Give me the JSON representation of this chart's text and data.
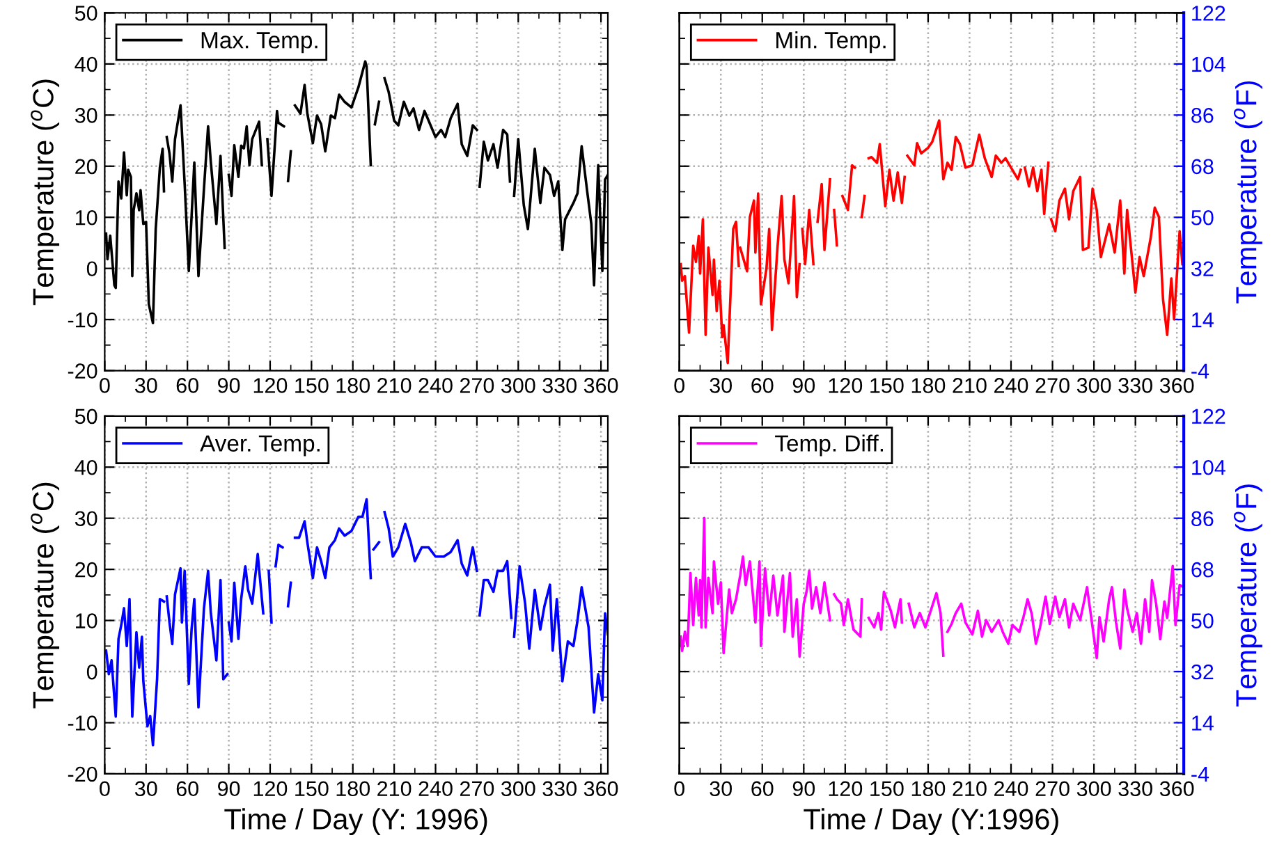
{
  "chart_data": [
    {
      "type": "line",
      "ylabel": "Temperature ($^{o}$C)",
      "grid": true,
      "legend": "top left",
      "xlim": [
        0,
        365
      ],
      "xticks": [
        0,
        30,
        60,
        90,
        120,
        150,
        180,
        210,
        240,
        270,
        300,
        330,
        360
      ],
      "ylim": [
        -20,
        50
      ],
      "yticks": [
        -20,
        -10,
        0,
        10,
        20,
        30,
        40,
        50
      ],
      "x": [
        1,
        2,
        4,
        7,
        8,
        10,
        12,
        14,
        16,
        17,
        19,
        20,
        21,
        23,
        25,
        26,
        28,
        30,
        32,
        35,
        37,
        40,
        42,
        43,
        44,
        45,
        47,
        49,
        51,
        55,
        58,
        61,
        65,
        68,
        72,
        75,
        77,
        81,
        84,
        87,
        88,
        90,
        92,
        94,
        97,
        99,
        101,
        103,
        105,
        107,
        112,
        114,
        116,
        118,
        121,
        125,
        126,
        130,
        131,
        133,
        135,
        136,
        138,
        142,
        145,
        147,
        151,
        154,
        157,
        160,
        164,
        167,
        170,
        174,
        179,
        184,
        189,
        190,
        193,
        194,
        196,
        199,
        201,
        203,
        206,
        210,
        213,
        217,
        221,
        224,
        228,
        232,
        235,
        240,
        244,
        247,
        251,
        256,
        259,
        263,
        267,
        270,
        271,
        272,
        275,
        278,
        282,
        285,
        289,
        292,
        294,
        296,
        297,
        300,
        304,
        307,
        312,
        316,
        319,
        323,
        326,
        329,
        332,
        334,
        340,
        343,
        346,
        350,
        353,
        355,
        358,
        361,
        362,
        363,
        365
      ],
      "series": [
        {
          "name": "Max. Temp.",
          "color": "#000000",
          "values": [
            6.8,
            1.8,
            6.4,
            -3.3,
            -3.8,
            17,
            13.7,
            22.7,
            14.3,
            19.3,
            17.9,
            -1.5,
            11.4,
            14.7,
            11.4,
            15.3,
            8.7,
            9.1,
            -7,
            -10.7,
            7.7,
            19.7,
            23.4,
            15.1,
            null,
            25.7,
            22.5,
            17,
            25.3,
            31.9,
            16.5,
            -0.5,
            20.7,
            -1.5,
            15.6,
            27.8,
            20.7,
            8.7,
            22,
            4,
            null,
            18.3,
            14.2,
            24.1,
            17.9,
            24,
            23.5,
            27.8,
            20.2,
            25.3,
            28.7,
            20.2,
            null,
            25.3,
            14.2,
            30.8,
            28.5,
            27.8,
            null,
            17.1,
            22.9,
            null,
            31.9,
            30.3,
            35.9,
            30.3,
            24.5,
            29.9,
            28.2,
            22.9,
            29.9,
            29.4,
            34,
            32.6,
            31.5,
            35.4,
            40.5,
            39.5,
            20.2,
            null,
            28.2,
            32.6,
            null,
            37.2,
            34.5,
            28.9,
            28,
            32.6,
            29.9,
            31.3,
            27.1,
            30.8,
            28.9,
            25.7,
            27.1,
            25.7,
            29.4,
            32.2,
            24.3,
            22,
            28,
            27.1,
            null,
            16,
            24.8,
            21.1,
            24.3,
            19.7,
            27.1,
            26.2,
            17,
            null,
            14.2,
            25.3,
            12.4,
            7.7,
            23.4,
            12.8,
            19.7,
            18.3,
            14.2,
            17,
            3.6,
            9.6,
            12.8,
            14.7,
            23.9,
            15.1,
            8.7,
            -3.3,
            20.2,
            -0.5,
            7.7,
            17.4,
            18.3
          ]
        }
      ]
    },
    {
      "type": "line",
      "y2label": "Temperature ($^{o}$F)",
      "grid": true,
      "legend": "top left",
      "xlim": [
        0,
        365
      ],
      "xticks": [
        0,
        30,
        60,
        90,
        120,
        150,
        180,
        210,
        240,
        270,
        300,
        330,
        360
      ],
      "y2lim": [
        -4,
        122
      ],
      "y2ticks": [
        -4,
        14,
        32,
        50,
        68,
        86,
        104,
        122
      ],
      "x": [
        1,
        2,
        4,
        7,
        10,
        12,
        14,
        15,
        17,
        19,
        21,
        24,
        25,
        27,
        29,
        31,
        32,
        35,
        37,
        39,
        41,
        43,
        43.5,
        44,
        46,
        49,
        51,
        54,
        55,
        57,
        59,
        63,
        65,
        67,
        71,
        74,
        76,
        79,
        83,
        85,
        87,
        88,
        89,
        91,
        94,
        97,
        98,
        100,
        103,
        105,
        109,
        110,
        112,
        114,
        116,
        118,
        122,
        125,
        127,
        130,
        132,
        134,
        135,
        137,
        139,
        143,
        145,
        149,
        152,
        155,
        158,
        161,
        163,
        164,
        165,
        170,
        172,
        175,
        180,
        183,
        188,
        191,
        194,
        197,
        200,
        203,
        207,
        212,
        217,
        221,
        226,
        229,
        233,
        236,
        240,
        245,
        247,
        248,
        250,
        253,
        256,
        259,
        262,
        264,
        267,
        268,
        269,
        272,
        275,
        279,
        282,
        285,
        290,
        292,
        296,
        299,
        302,
        305,
        311,
        315,
        319,
        322,
        324,
        330,
        333,
        336,
        341,
        344,
        347,
        350,
        353,
        356,
        358,
        362,
        364
      ],
      "series": [
        {
          "name": "Min. Temp.",
          "color": "#ff0000",
          "axis": "y2",
          "values": [
            33.5,
            27.7,
            29.3,
            9.4,
            40,
            34.3,
            43.4,
            30.2,
            49.3,
            8.6,
            39.3,
            22.7,
            35.1,
            17,
            27.7,
            7.8,
            12,
            -1.3,
            22.7,
            45.9,
            48.4,
            32.8,
            null,
            39.3,
            36,
            31,
            50.1,
            55.9,
            37.6,
            58.4,
            19.4,
            31.8,
            45.9,
            10.3,
            39.3,
            57.5,
            35.1,
            26.8,
            57.5,
            21.9,
            33.5,
            null,
            45.9,
            33.5,
            52.6,
            33.5,
            null,
            48.4,
            61.7,
            38.5,
            63.4,
            null,
            52.6,
            40.1,
            null,
            57.5,
            52.6,
            68.3,
            67.5,
            null,
            50.1,
            57.5,
            null,
            70.8,
            71.2,
            69.2,
            75.8,
            53.9,
            66.7,
            55.9,
            65.8,
            55.1,
            64.2,
            null,
            71.7,
            68.3,
            76.1,
            72.5,
            74.5,
            76.6,
            84.1,
            63.4,
            69.2,
            66.7,
            78.3,
            75.8,
            67.5,
            68.3,
            79.1,
            70.8,
            64.2,
            71.7,
            69.2,
            70.8,
            67.5,
            63.4,
            66.7,
            null,
            67.5,
            60.9,
            67.5,
            59.2,
            66.7,
            51.2,
            69.2,
            null,
            49.3,
            45.1,
            55.9,
            60.1,
            49.3,
            59.2,
            64.2,
            38.5,
            39.3,
            60.1,
            52.6,
            36,
            47.6,
            37.6,
            55.9,
            30.2,
            52.6,
            23.5,
            36,
            29.3,
            42.6,
            53.4,
            50.1,
            21,
            8.6,
            28.5,
            14.1,
            45.1,
            33.5
          ]
        }
      ]
    },
    {
      "type": "line",
      "xlabel": "Time / Day (Y: 1996)",
      "ylabel": "Temperature ($^{o}$C)",
      "grid": true,
      "legend": "top left",
      "xlim": [
        0,
        365
      ],
      "xticks": [
        0,
        30,
        60,
        90,
        120,
        150,
        180,
        210,
        240,
        270,
        300,
        330,
        360
      ],
      "ylim": [
        -20,
        50
      ],
      "yticks": [
        -20,
        -10,
        0,
        10,
        20,
        30,
        40,
        50
      ],
      "x": [
        1,
        3,
        5,
        8,
        10,
        12,
        14,
        16,
        18,
        20,
        23,
        25,
        27,
        28,
        31,
        33,
        35,
        38,
        40,
        43,
        44,
        45,
        47,
        49,
        51,
        55,
        56,
        58,
        61,
        63,
        65,
        68,
        72,
        75,
        77,
        81,
        84,
        86,
        89,
        89.5,
        90,
        92,
        94,
        97,
        99,
        102,
        104,
        107,
        111,
        115,
        117,
        119,
        121,
        122,
        124,
        126,
        129,
        131,
        133,
        135,
        136,
        138,
        141,
        145,
        147,
        151,
        154,
        157,
        160,
        163,
        167,
        170,
        174,
        179,
        184,
        187,
        190,
        193,
        194,
        195,
        199,
        201,
        203,
        206,
        209,
        213,
        218,
        222,
        225,
        230,
        235,
        240,
        246,
        251,
        256,
        259,
        263,
        267,
        270,
        271,
        272,
        275,
        278,
        282,
        285,
        289,
        292,
        295,
        296,
        297,
        301,
        305,
        308,
        312,
        316,
        319,
        323,
        325,
        328,
        332,
        336,
        340,
        343,
        346,
        351,
        355,
        358,
        361,
        363,
        365
      ],
      "series": [
        {
          "name": "Aver. Temp.",
          "color": "#0000ff",
          "values": [
            4.1,
            -0.5,
            2.2,
            -8.8,
            6.4,
            9.1,
            12.4,
            5,
            14.2,
            -8.8,
            7.7,
            0.8,
            6.8,
            -1.8,
            -10.7,
            -8.7,
            -14.4,
            -1.4,
            14.2,
            13.7,
            null,
            14.7,
            9.6,
            5.4,
            15.1,
            20.2,
            9.6,
            19.7,
            -2.4,
            8.2,
            14.2,
            -7,
            12.4,
            19.7,
            11.4,
            2.2,
            17.9,
            -1.5,
            -0.5,
            null,
            9.6,
            5.9,
            17.4,
            6.4,
            14.2,
            20.6,
            16,
            13.3,
            23,
            11.4,
            null,
            19.7,
            9.6,
            null,
            20.6,
            24.8,
            24.3,
            null,
            12.8,
            17.4,
            null,
            26.2,
            26.2,
            29.4,
            25.3,
            18.3,
            24.3,
            21.6,
            18.3,
            24.3,
            25.7,
            28,
            26.6,
            27.5,
            30.3,
            30.3,
            33.7,
            18.3,
            null,
            23.9,
            25.3,
            null,
            31.2,
            28,
            22.5,
            24.3,
            28.9,
            25.3,
            21.6,
            24.3,
            24.3,
            22.5,
            22.5,
            23.4,
            25.7,
            21.1,
            18.8,
            24.3,
            19.7,
            null,
            11,
            17.9,
            17.9,
            15.6,
            19.7,
            19.7,
            21.6,
            10.5,
            null,
            6.8,
            20.6,
            13.3,
            4.5,
            16,
            8.2,
            12.8,
            17,
            4.1,
            14.2,
            -1.9,
            5.9,
            5,
            10,
            16.5,
            8.7,
            -8,
            -0.5,
            -5.6,
            11.4,
            7.3
          ]
        }
      ]
    },
    {
      "type": "line",
      "xlabel": "Time / Day (Y:1996)",
      "y2label": "Temperature ($^{o}$F)",
      "grid": true,
      "legend": "top left",
      "xlim": [
        0,
        365
      ],
      "xticks": [
        0,
        30,
        60,
        90,
        120,
        150,
        180,
        210,
        240,
        270,
        300,
        330,
        360
      ],
      "y2lim": [
        -4,
        122
      ],
      "y2ticks": [
        -4,
        14,
        32,
        50,
        68,
        86,
        104,
        122
      ],
      "x": [
        1,
        2,
        4,
        6,
        8,
        10,
        12,
        14,
        15,
        16,
        18,
        19,
        21,
        24,
        25,
        28,
        30,
        32,
        36,
        38,
        41,
        44,
        46,
        48,
        51,
        55,
        58,
        59,
        62,
        65,
        68,
        71,
        75,
        76,
        80,
        82,
        85,
        87,
        90,
        92,
        94,
        96,
        99,
        102,
        105,
        109,
        110,
        112,
        114,
        116,
        117,
        119,
        122,
        126,
        131,
        132,
        134,
        137,
        141,
        144,
        146,
        148,
        153,
        156,
        160,
        161,
        163,
        166,
        170,
        174,
        178,
        183,
        186,
        189,
        191,
        192,
        194,
        197,
        200,
        204,
        207,
        212,
        216,
        219,
        222,
        226,
        231,
        234,
        238,
        241,
        246,
        249,
        252,
        255,
        258,
        261,
        265,
        268,
        272,
        275,
        279,
        282,
        285,
        290,
        295,
        299,
        302,
        304,
        307,
        311,
        313,
        316,
        319,
        322,
        324,
        328,
        331,
        334,
        337,
        340,
        342,
        345,
        348,
        351,
        353,
        357,
        359,
        362,
        365
      ],
      "series": [
        {
          "name": "Temp. Diff.",
          "color": "#ff00ff",
          "axis": "y2",
          "values": [
            44.3,
            39.3,
            46,
            41,
            66.7,
            48.4,
            65,
            51.8,
            64.2,
            47.6,
            86.1,
            47.6,
            65,
            52.6,
            70.8,
            55.9,
            63.4,
            38.5,
            60.9,
            52.6,
            57.5,
            65.8,
            72.5,
            62.5,
            70.8,
            49.3,
            70.8,
            41,
            68.3,
            51.8,
            65.8,
            51.8,
            65.8,
            46,
            66.7,
            44.3,
            57.5,
            37.3,
            55.9,
            60.1,
            67.5,
            54.2,
            61.7,
            52.6,
            63.4,
            50.1,
            null,
            59.2,
            57.5,
            56.5,
            55.9,
            48.4,
            57.5,
            46.8,
            44.3,
            57.5,
            null,
            50.9,
            47.6,
            52.6,
            46.8,
            60.1,
            53.4,
            47.6,
            57.5,
            49.3,
            null,
            55.9,
            47.6,
            52.6,
            47.6,
            55.1,
            59.6,
            52.6,
            37.6,
            null,
            46,
            48.8,
            52.6,
            55.9,
            49.3,
            45.1,
            53.4,
            44.3,
            50.1,
            46,
            50.1,
            46,
            41.8,
            48.4,
            46,
            51.2,
            57.5,
            52.3,
            41.8,
            47.6,
            58.4,
            48.8,
            58.4,
            51.2,
            57.5,
            47.6,
            55.9,
            50.1,
            61.7,
            47.6,
            36.8,
            51.2,
            42.6,
            57.5,
            61.7,
            49.3,
            40.1,
            60.9,
            54.2,
            46,
            52.6,
            41.8,
            57.5,
            46,
            64.2,
            55.9,
            43.4,
            56.7,
            50.9,
            69.2,
            48.4,
            62.5,
            61.7
          ]
        }
      ]
    }
  ]
}
